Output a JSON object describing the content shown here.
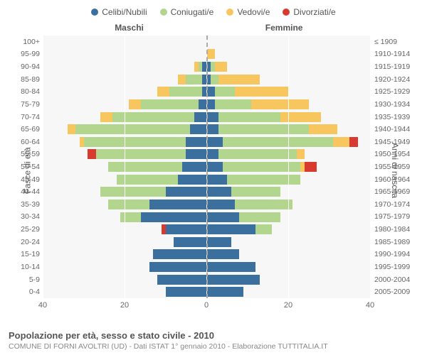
{
  "legend": {
    "items": [
      {
        "label": "Celibi/Nubili",
        "color": "#3b6f9e"
      },
      {
        "label": "Coniugati/e",
        "color": "#b3d68e"
      },
      {
        "label": "Vedovi/e",
        "color": "#f7c65e"
      },
      {
        "label": "Divorziati/e",
        "color": "#d83a2f"
      }
    ]
  },
  "chart": {
    "type": "population-pyramid",
    "left_side_label": "Maschi",
    "right_side_label": "Femmine",
    "y_axis_left_title": "Fasce di età",
    "y_axis_right_title": "Anni di nascita",
    "xlim_half": 40,
    "xticks": [
      40,
      20,
      0,
      20,
      40
    ],
    "background_color": "#f7f7f7",
    "grid_color": "#ffffff",
    "center_line_color": "#aaaaaa",
    "series_colors": {
      "celibi": "#3b6f9e",
      "coniugati": "#b3d68e",
      "vedovi": "#f7c65e",
      "divorziati": "#d83a2f"
    },
    "rows": [
      {
        "age": "100+",
        "birth": "≤ 1909",
        "m": {
          "c": 0,
          "co": 0,
          "v": 0,
          "d": 0
        },
        "f": {
          "c": 0,
          "co": 0,
          "v": 0,
          "d": 0
        }
      },
      {
        "age": "95-99",
        "birth": "1910-1914",
        "m": {
          "c": 0,
          "co": 0,
          "v": 0,
          "d": 0
        },
        "f": {
          "c": 0,
          "co": 0,
          "v": 2,
          "d": 0
        }
      },
      {
        "age": "90-94",
        "birth": "1915-1919",
        "m": {
          "c": 1,
          "co": 1,
          "v": 1,
          "d": 0
        },
        "f": {
          "c": 1,
          "co": 1,
          "v": 3,
          "d": 0
        }
      },
      {
        "age": "85-89",
        "birth": "1920-1924",
        "m": {
          "c": 1,
          "co": 4,
          "v": 2,
          "d": 0
        },
        "f": {
          "c": 1,
          "co": 2,
          "v": 10,
          "d": 0
        }
      },
      {
        "age": "80-84",
        "birth": "1925-1929",
        "m": {
          "c": 1,
          "co": 8,
          "v": 3,
          "d": 0
        },
        "f": {
          "c": 2,
          "co": 5,
          "v": 13,
          "d": 0
        }
      },
      {
        "age": "75-79",
        "birth": "1930-1934",
        "m": {
          "c": 2,
          "co": 14,
          "v": 3,
          "d": 0
        },
        "f": {
          "c": 2,
          "co": 9,
          "v": 14,
          "d": 0
        }
      },
      {
        "age": "70-74",
        "birth": "1935-1939",
        "m": {
          "c": 3,
          "co": 20,
          "v": 3,
          "d": 0
        },
        "f": {
          "c": 3,
          "co": 15,
          "v": 10,
          "d": 0
        }
      },
      {
        "age": "65-69",
        "birth": "1940-1944",
        "m": {
          "c": 4,
          "co": 28,
          "v": 2,
          "d": 0
        },
        "f": {
          "c": 3,
          "co": 22,
          "v": 7,
          "d": 0
        }
      },
      {
        "age": "60-64",
        "birth": "1945-1949",
        "m": {
          "c": 5,
          "co": 25,
          "v": 1,
          "d": 0
        },
        "f": {
          "c": 4,
          "co": 27,
          "v": 4,
          "d": 2
        }
      },
      {
        "age": "55-59",
        "birth": "1950-1954",
        "m": {
          "c": 5,
          "co": 22,
          "v": 0,
          "d": 2
        },
        "f": {
          "c": 3,
          "co": 19,
          "v": 2,
          "d": 0
        }
      },
      {
        "age": "50-54",
        "birth": "1955-1959",
        "m": {
          "c": 6,
          "co": 18,
          "v": 0,
          "d": 0
        },
        "f": {
          "c": 4,
          "co": 19,
          "v": 1,
          "d": 3
        }
      },
      {
        "age": "45-49",
        "birth": "1960-1964",
        "m": {
          "c": 7,
          "co": 15,
          "v": 0,
          "d": 0
        },
        "f": {
          "c": 5,
          "co": 18,
          "v": 0,
          "d": 0
        }
      },
      {
        "age": "40-44",
        "birth": "1965-1969",
        "m": {
          "c": 10,
          "co": 16,
          "v": 0,
          "d": 0
        },
        "f": {
          "c": 6,
          "co": 12,
          "v": 0,
          "d": 0
        }
      },
      {
        "age": "35-39",
        "birth": "1970-1974",
        "m": {
          "c": 14,
          "co": 10,
          "v": 0,
          "d": 0
        },
        "f": {
          "c": 7,
          "co": 14,
          "v": 0,
          "d": 0
        }
      },
      {
        "age": "30-34",
        "birth": "1975-1979",
        "m": {
          "c": 16,
          "co": 5,
          "v": 0,
          "d": 0
        },
        "f": {
          "c": 8,
          "co": 10,
          "v": 0,
          "d": 0
        }
      },
      {
        "age": "25-29",
        "birth": "1980-1984",
        "m": {
          "c": 10,
          "co": 0,
          "v": 0,
          "d": 1
        },
        "f": {
          "c": 12,
          "co": 4,
          "v": 0,
          "d": 0
        }
      },
      {
        "age": "20-24",
        "birth": "1985-1989",
        "m": {
          "c": 8,
          "co": 0,
          "v": 0,
          "d": 0
        },
        "f": {
          "c": 6,
          "co": 0,
          "v": 0,
          "d": 0
        }
      },
      {
        "age": "15-19",
        "birth": "1990-1994",
        "m": {
          "c": 13,
          "co": 0,
          "v": 0,
          "d": 0
        },
        "f": {
          "c": 8,
          "co": 0,
          "v": 0,
          "d": 0
        }
      },
      {
        "age": "10-14",
        "birth": "1995-1999",
        "m": {
          "c": 14,
          "co": 0,
          "v": 0,
          "d": 0
        },
        "f": {
          "c": 12,
          "co": 0,
          "v": 0,
          "d": 0
        }
      },
      {
        "age": "5-9",
        "birth": "2000-2004",
        "m": {
          "c": 12,
          "co": 0,
          "v": 0,
          "d": 0
        },
        "f": {
          "c": 13,
          "co": 0,
          "v": 0,
          "d": 0
        }
      },
      {
        "age": "0-4",
        "birth": "2005-2009",
        "m": {
          "c": 10,
          "co": 0,
          "v": 0,
          "d": 0
        },
        "f": {
          "c": 9,
          "co": 0,
          "v": 0,
          "d": 0
        }
      }
    ]
  },
  "footer": {
    "title": "Popolazione per età, sesso e stato civile - 2010",
    "subtitle": "COMUNE DI FORNI AVOLTRI (UD) - Dati ISTAT 1° gennaio 2010 - Elaborazione TUTTITALIA.IT"
  }
}
